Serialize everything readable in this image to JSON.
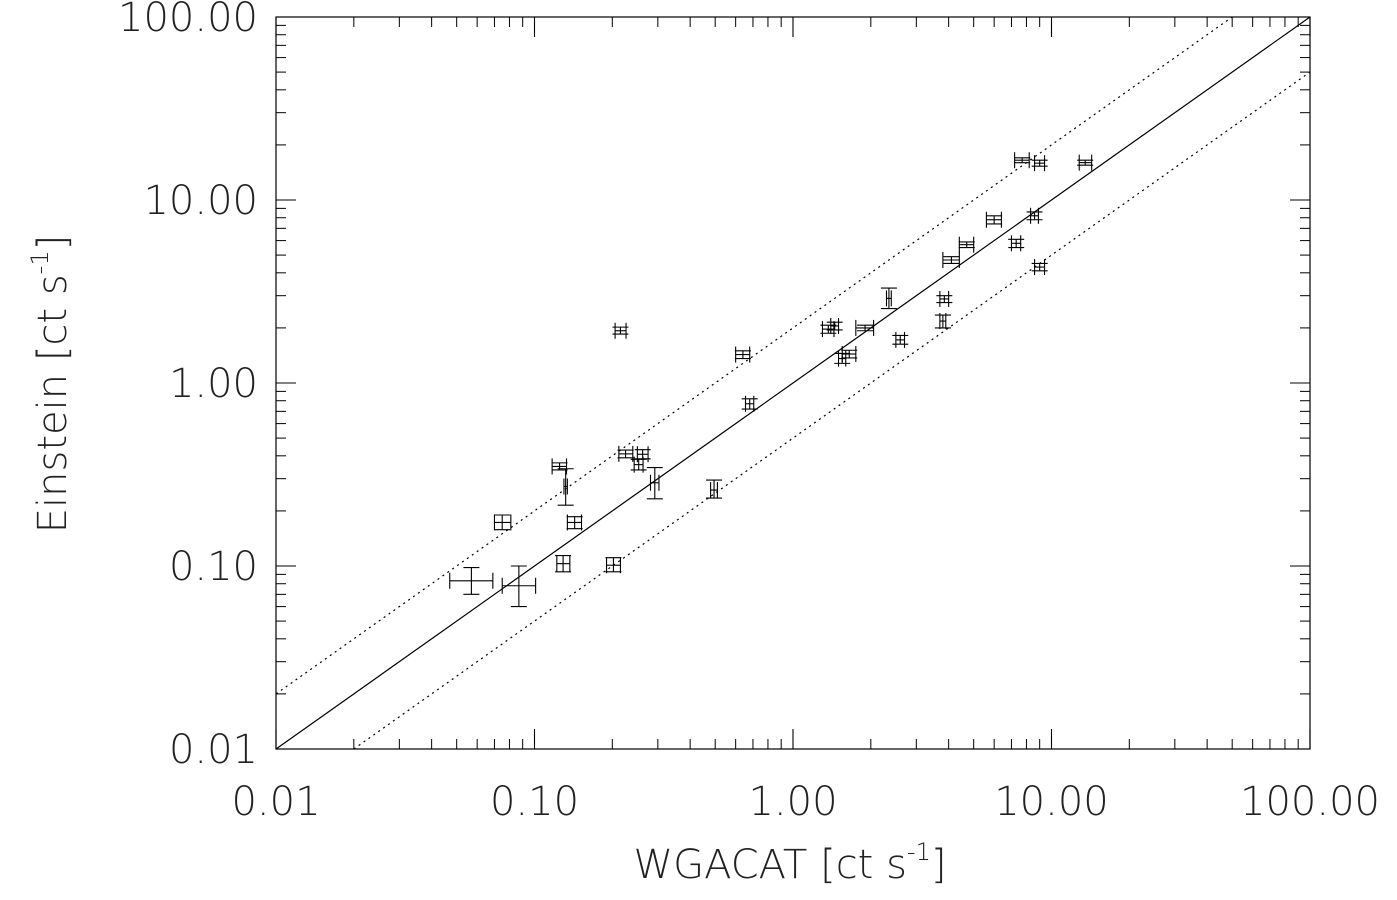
{
  "chart_data": {
    "type": "scatter",
    "title": "",
    "xlabel": {
      "text": "WGACAT ",
      "open": "[",
      "unit": "ct s",
      "exponent": "-1",
      "close": "]"
    },
    "ylabel": {
      "text": "Einstein ",
      "open": "[",
      "unit": "ct s",
      "exponent": "-1",
      "close": "]"
    },
    "xscale": "log",
    "yscale": "log",
    "xlim": [
      0.01,
      100
    ],
    "ylim": [
      0.01,
      100
    ],
    "xticks": [
      {
        "value": 0.01,
        "label": "0.01"
      },
      {
        "value": 0.1,
        "label": "0.10"
      },
      {
        "value": 1,
        "label": "1.00"
      },
      {
        "value": 10,
        "label": "10.00"
      },
      {
        "value": 100,
        "label": "100.00"
      }
    ],
    "yticks": [
      {
        "value": 0.01,
        "label": "0.01"
      },
      {
        "value": 0.1,
        "label": "0.10"
      },
      {
        "value": 1,
        "label": "1.00"
      },
      {
        "value": 10,
        "label": "10.00"
      },
      {
        "value": 100,
        "label": "100.00"
      }
    ],
    "grid": false,
    "lines": [
      {
        "kind": "identity",
        "style": "solid",
        "factor": 1
      },
      {
        "kind": "factor",
        "style": "dotted",
        "factor": 2
      },
      {
        "kind": "factor",
        "style": "dotted",
        "factor": 0.5
      }
    ],
    "points": [
      {
        "x": 0.057,
        "y": 0.083,
        "xerr": [
          0.047,
          0.069
        ],
        "yerr": [
          0.07,
          0.098
        ]
      },
      {
        "x": 0.087,
        "y": 0.078,
        "xerr": [
          0.075,
          0.101
        ],
        "yerr": [
          0.06,
          0.1
        ]
      },
      {
        "x": 0.075,
        "y": 0.173,
        "xerr": [
          0.07,
          0.081
        ],
        "yerr": [
          0.158,
          0.19
        ]
      },
      {
        "x": 0.129,
        "y": 0.103,
        "xerr": [
          0.122,
          0.137
        ],
        "yerr": [
          0.093,
          0.114
        ]
      },
      {
        "x": 0.125,
        "y": 0.35,
        "xerr": [
          0.117,
          0.133
        ],
        "yerr": [
          0.335,
          0.366
        ]
      },
      {
        "x": 0.132,
        "y": 0.272,
        "xerr": [
          0.13,
          0.134
        ],
        "yerr": [
          0.215,
          0.34
        ]
      },
      {
        "x": 0.143,
        "y": 0.173,
        "xerr": [
          0.134,
          0.152
        ],
        "yerr": [
          0.16,
          0.186
        ]
      },
      {
        "x": 0.202,
        "y": 0.101,
        "xerr": [
          0.19,
          0.215
        ],
        "yerr": [
          0.093,
          0.111
        ]
      },
      {
        "x": 0.215,
        "y": 1.93,
        "xerr": [
          0.205,
          0.226
        ],
        "yerr": [
          1.85,
          2.02
        ]
      },
      {
        "x": 0.225,
        "y": 0.41,
        "xerr": [
          0.212,
          0.24
        ],
        "yerr": [
          0.39,
          0.43
        ]
      },
      {
        "x": 0.253,
        "y": 0.358,
        "xerr": [
          0.243,
          0.263
        ],
        "yerr": [
          0.335,
          0.383
        ]
      },
      {
        "x": 0.262,
        "y": 0.408,
        "xerr": [
          0.25,
          0.275
        ],
        "yerr": [
          0.385,
          0.432
        ]
      },
      {
        "x": 0.292,
        "y": 0.285,
        "xerr": [
          0.281,
          0.303
        ],
        "yerr": [
          0.233,
          0.345
        ]
      },
      {
        "x": 0.495,
        "y": 0.26,
        "xerr": [
          0.48,
          0.51
        ],
        "yerr": [
          0.235,
          0.295
        ]
      },
      {
        "x": 0.64,
        "y": 1.43,
        "xerr": [
          0.6,
          0.68
        ],
        "yerr": [
          1.36,
          1.5
        ]
      },
      {
        "x": 0.68,
        "y": 0.77,
        "xerr": [
          0.655,
          0.705
        ],
        "yerr": [
          0.72,
          0.82
        ]
      },
      {
        "x": 1.37,
        "y": 1.97,
        "xerr": [
          1.3,
          1.44
        ],
        "yerr": [
          1.87,
          2.07
        ]
      },
      {
        "x": 1.45,
        "y": 2.05,
        "xerr": [
          1.4,
          1.5
        ],
        "yerr": [
          1.95,
          2.15
        ]
      },
      {
        "x": 1.55,
        "y": 1.36,
        "xerr": [
          1.5,
          1.6
        ],
        "yerr": [
          1.28,
          1.45
        ]
      },
      {
        "x": 1.65,
        "y": 1.44,
        "xerr": [
          1.55,
          1.75
        ],
        "yerr": [
          1.37,
          1.51
        ]
      },
      {
        "x": 1.9,
        "y": 2.0,
        "xerr": [
          1.75,
          2.05
        ],
        "yerr": [
          1.93,
          2.07
        ]
      },
      {
        "x": 2.35,
        "y": 2.9,
        "xerr": [
          2.3,
          2.4
        ],
        "yerr": [
          2.55,
          3.3
        ]
      },
      {
        "x": 2.6,
        "y": 1.72,
        "xerr": [
          2.5,
          2.7
        ],
        "yerr": [
          1.63,
          1.82
        ]
      },
      {
        "x": 3.8,
        "y": 2.18,
        "xerr": [
          3.7,
          3.9
        ],
        "yerr": [
          2.0,
          2.35
        ]
      },
      {
        "x": 3.85,
        "y": 2.88,
        "xerr": [
          3.7,
          4.0
        ],
        "yerr": [
          2.75,
          3.0
        ]
      },
      {
        "x": 4.1,
        "y": 4.7,
        "xerr": [
          3.8,
          4.4
        ],
        "yerr": [
          4.5,
          4.9
        ]
      },
      {
        "x": 4.7,
        "y": 5.7,
        "xerr": [
          4.4,
          5.0
        ],
        "yerr": [
          5.5,
          5.9
        ]
      },
      {
        "x": 6.0,
        "y": 7.8,
        "xerr": [
          5.6,
          6.4
        ],
        "yerr": [
          7.4,
          8.2
        ]
      },
      {
        "x": 7.3,
        "y": 5.8,
        "xerr": [
          7.0,
          7.6
        ],
        "yerr": [
          5.5,
          6.1
        ]
      },
      {
        "x": 7.7,
        "y": 16.5,
        "xerr": [
          7.2,
          8.2
        ],
        "yerr": [
          16.0,
          17.0
        ]
      },
      {
        "x": 8.6,
        "y": 8.2,
        "xerr": [
          8.3,
          8.9
        ],
        "yerr": [
          7.8,
          8.6
        ]
      },
      {
        "x": 9.0,
        "y": 15.9,
        "xerr": [
          8.6,
          9.4
        ],
        "yerr": [
          15.3,
          16.5
        ]
      },
      {
        "x": 9.0,
        "y": 4.3,
        "xerr": [
          8.6,
          9.4
        ],
        "yerr": [
          4.1,
          4.5
        ]
      },
      {
        "x": 13.5,
        "y": 16.0,
        "xerr": [
          12.8,
          14.3
        ],
        "yerr": [
          15.5,
          16.5
        ]
      }
    ]
  }
}
